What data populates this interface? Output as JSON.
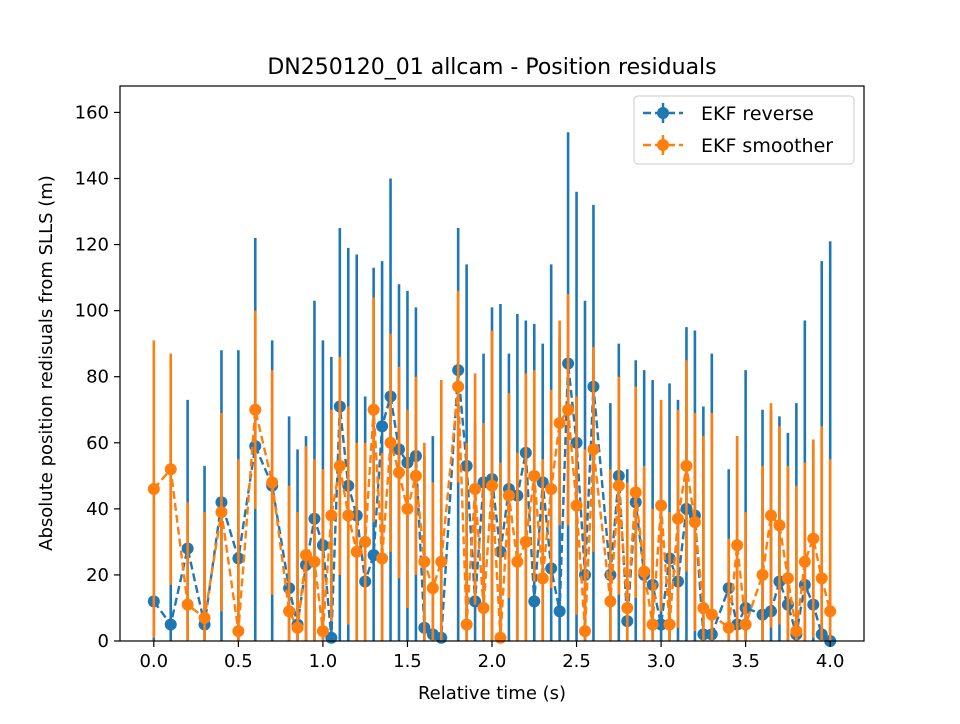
{
  "chart_data": {
    "type": "scatter",
    "title": "DN250120_01 allcam - Position residuals",
    "xlabel": "Relative time (s)",
    "ylabel": "Absolute position redisuals from SLLS (m)",
    "xlim": [
      -0.2,
      4.2
    ],
    "ylim": [
      0,
      168
    ],
    "xticks": [
      0.0,
      0.5,
      1.0,
      1.5,
      2.0,
      2.5,
      3.0,
      3.5,
      4.0
    ],
    "xtick_labels": [
      "0.0",
      "0.5",
      "1.0",
      "1.5",
      "2.0",
      "2.5",
      "3.0",
      "3.5",
      "4.0"
    ],
    "yticks": [
      0,
      20,
      40,
      60,
      80,
      100,
      120,
      140,
      160
    ],
    "ytick_labels": [
      "0",
      "20",
      "40",
      "60",
      "80",
      "100",
      "120",
      "140",
      "160"
    ],
    "grid": false,
    "legend_position": "top-right",
    "x": [
      0.0,
      0.1,
      0.2,
      0.3,
      0.4,
      0.5,
      0.6,
      0.7,
      0.8,
      0.85,
      0.9,
      0.95,
      1.0,
      1.05,
      1.1,
      1.15,
      1.2,
      1.25,
      1.3,
      1.35,
      1.4,
      1.45,
      1.5,
      1.55,
      1.6,
      1.65,
      1.7,
      1.8,
      1.85,
      1.9,
      1.95,
      2.0,
      2.05,
      2.1,
      2.15,
      2.2,
      2.25,
      2.3,
      2.35,
      2.4,
      2.45,
      2.5,
      2.55,
      2.6,
      2.7,
      2.75,
      2.8,
      2.85,
      2.9,
      2.95,
      3.0,
      3.05,
      3.1,
      3.15,
      3.2,
      3.25,
      3.3,
      3.4,
      3.45,
      3.5,
      3.6,
      3.65,
      3.7,
      3.75,
      3.8,
      3.85,
      3.9,
      3.95,
      4.0
    ],
    "series": [
      {
        "name": "EKF reverse",
        "color": "#1f77b4",
        "values": [
          12,
          5,
          28,
          5,
          42,
          25,
          59,
          47,
          16,
          5,
          23,
          37,
          29,
          1,
          71,
          47,
          38,
          18,
          26,
          65,
          74,
          58,
          54,
          56,
          4,
          2,
          1,
          82,
          53,
          12,
          48,
          49,
          27,
          46,
          44,
          57,
          12,
          48,
          22,
          9,
          84,
          60,
          20,
          77,
          20,
          50,
          6,
          42,
          20,
          17,
          5,
          25,
          18,
          40,
          38,
          2,
          2,
          16,
          5,
          10,
          8,
          9,
          18,
          11,
          2,
          17,
          11,
          2,
          0
        ],
        "err": [
          30,
          60,
          45,
          48,
          46,
          63,
          63,
          44,
          52,
          53,
          39,
          66,
          62,
          85,
          54,
          72,
          79,
          56,
          87,
          50,
          66,
          50,
          52,
          45,
          52,
          60,
          55,
          43,
          61,
          54,
          39,
          52,
          75,
          41,
          55,
          40,
          84,
          42,
          92,
          83,
          70,
          76,
          83,
          55,
          52,
          40,
          46,
          43,
          62,
          62,
          63,
          53,
          55,
          55,
          56,
          69,
          85,
          36,
          57,
          72,
          62,
          61,
          50,
          52,
          70,
          80,
          50,
          113,
          121
        ],
        "shown_lower": [
          0,
          0,
          0,
          0,
          0,
          0,
          0,
          0,
          0,
          0,
          0,
          0,
          0,
          0,
          0,
          0,
          0,
          0,
          0,
          0,
          0,
          0,
          0,
          0,
          0,
          0,
          0,
          0,
          0,
          0,
          0,
          0,
          0,
          0,
          0,
          0,
          0,
          0,
          0,
          0,
          0,
          0,
          0,
          0,
          0,
          0,
          0,
          0,
          0,
          0,
          0,
          0,
          0,
          0,
          0,
          0,
          0,
          0,
          0,
          0,
          0,
          0,
          0,
          0,
          0,
          0,
          0,
          0,
          0
        ]
      },
      {
        "name": "EKF smoother",
        "color": "#ff7f0e",
        "values": [
          46,
          52,
          11,
          7,
          39,
          3,
          70,
          48,
          9,
          4,
          26,
          24,
          3,
          38,
          53,
          38,
          27,
          30,
          70,
          25,
          60,
          51,
          40,
          50,
          24,
          16,
          24,
          77,
          5,
          46,
          10,
          47,
          1,
          44,
          24,
          30,
          50,
          19,
          46,
          66,
          70,
          41,
          3,
          58,
          12,
          47,
          10,
          45,
          21,
          5,
          41,
          5,
          37,
          53,
          36,
          10,
          8,
          4,
          29,
          5,
          20,
          38,
          35,
          19,
          3,
          24,
          31,
          19,
          9
        ],
        "err": [
          45,
          35,
          31,
          32,
          30,
          52,
          30,
          34,
          38,
          35,
          33,
          31,
          49,
          32,
          33,
          33,
          33,
          30,
          34,
          32,
          33,
          32,
          30,
          30,
          36,
          32,
          55,
          29,
          55,
          35,
          56,
          47,
          53,
          31,
          33,
          51,
          32,
          36,
          30,
          31,
          35,
          33,
          55,
          31,
          40,
          33,
          38,
          32,
          32,
          35,
          32,
          34,
          33,
          32,
          33,
          52,
          61,
          27,
          33,
          34,
          33,
          34,
          30,
          34,
          44,
          30,
          30,
          46,
          46
        ]
      }
    ]
  }
}
